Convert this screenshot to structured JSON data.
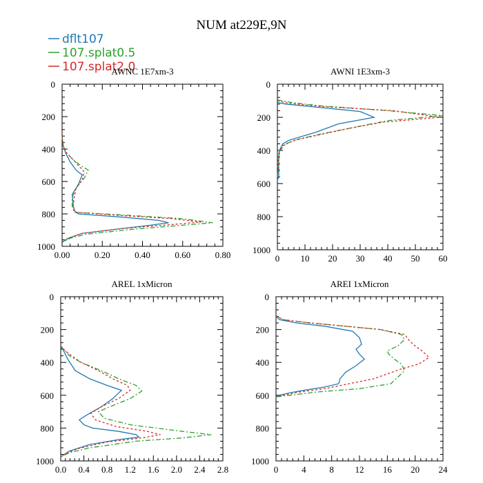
{
  "title": "NUM at229E,9N",
  "legend": {
    "placement": "top-left",
    "entries": [
      {
        "name": "dflt107",
        "color": "#1f77b4",
        "dash": "solid"
      },
      {
        "name": "107.splat0.5",
        "color": "#2ca02c",
        "dash": "dashdot"
      },
      {
        "name": "107.splat2.0",
        "color": "#d62728",
        "dash": "dotted"
      }
    ]
  },
  "chart_data": [
    {
      "type": "line",
      "title": "AWNC 1E7xm-3",
      "xlabel": "",
      "ylabel": "",
      "xlim": [
        0,
        0.8
      ],
      "ylim": [
        1000,
        0
      ],
      "xticks": [
        0,
        0.2,
        0.4,
        0.6,
        0.8
      ],
      "xtick_labels": [
        "0.00",
        "0.20",
        "0.40",
        "0.60",
        "0.80"
      ],
      "yticks": [
        0,
        200,
        400,
        600,
        800,
        1000
      ],
      "ytick_labels": [
        "0",
        "200",
        "400",
        "600",
        "800",
        "1000"
      ],
      "series": [
        {
          "name": "dflt107",
          "points": [
            [
              0,
              320
            ],
            [
              0.005,
              380
            ],
            [
              0.02,
              430
            ],
            [
              0.04,
              480
            ],
            [
              0.07,
              530
            ],
            [
              0.1,
              560
            ],
            [
              0.08,
              620
            ],
            [
              0.05,
              680
            ],
            [
              0.055,
              740
            ],
            [
              0.06,
              780
            ],
            [
              0.08,
              800
            ],
            [
              0.3,
              820
            ],
            [
              0.48,
              840
            ],
            [
              0.53,
              855
            ],
            [
              0.44,
              870
            ],
            [
              0.3,
              890
            ],
            [
              0.1,
              920
            ],
            [
              0.03,
              950
            ],
            [
              0,
              975
            ]
          ]
        },
        {
          "name": "107.splat0.5",
          "points": [
            [
              0,
              320
            ],
            [
              0.005,
              380
            ],
            [
              0.02,
              420
            ],
            [
              0.05,
              460
            ],
            [
              0.09,
              500
            ],
            [
              0.13,
              530
            ],
            [
              0.11,
              580
            ],
            [
              0.07,
              640
            ],
            [
              0.05,
              700
            ],
            [
              0.05,
              750
            ],
            [
              0.06,
              790
            ],
            [
              0.35,
              810
            ],
            [
              0.6,
              830
            ],
            [
              0.75,
              855
            ],
            [
              0.6,
              870
            ],
            [
              0.35,
              895
            ],
            [
              0.12,
              925
            ],
            [
              0.04,
              950
            ],
            [
              0,
              975
            ]
          ]
        },
        {
          "name": "107.splat2.0",
          "points": [
            [
              0,
              320
            ],
            [
              0.005,
              380
            ],
            [
              0.02,
              420
            ],
            [
              0.05,
              460
            ],
            [
              0.08,
              500
            ],
            [
              0.11,
              540
            ],
            [
              0.1,
              590
            ],
            [
              0.07,
              640
            ],
            [
              0.06,
              700
            ],
            [
              0.055,
              750
            ],
            [
              0.065,
              790
            ],
            [
              0.3,
              810
            ],
            [
              0.55,
              830
            ],
            [
              0.69,
              850
            ],
            [
              0.55,
              865
            ],
            [
              0.3,
              890
            ],
            [
              0.1,
              920
            ],
            [
              0.03,
              950
            ],
            [
              0,
              975
            ]
          ]
        }
      ]
    },
    {
      "type": "line",
      "title": "AWNI 1E3xm-3",
      "xlabel": "",
      "ylabel": "",
      "xlim": [
        0,
        60
      ],
      "ylim": [
        1000,
        0
      ],
      "xticks": [
        0,
        10,
        20,
        30,
        40,
        50,
        60
      ],
      "xtick_labels": [
        "0",
        "10",
        "20",
        "30",
        "40",
        "50",
        "60"
      ],
      "yticks": [
        0,
        200,
        400,
        600,
        800,
        1000
      ],
      "ytick_labels": [
        "0",
        "200",
        "400",
        "600",
        "800",
        "1000"
      ],
      "series": [
        {
          "name": "dflt107",
          "points": [
            [
              0,
              110
            ],
            [
              3,
              120
            ],
            [
              15,
              140
            ],
            [
              30,
              165
            ],
            [
              35,
              200
            ],
            [
              22,
              240
            ],
            [
              14,
              290
            ],
            [
              8,
              320
            ],
            [
              4,
              340
            ],
            [
              2,
              360
            ],
            [
              1,
              390
            ],
            [
              0.5,
              420
            ],
            [
              0.5,
              500
            ],
            [
              0.5,
              560
            ],
            [
              0,
              580
            ]
          ]
        },
        {
          "name": "107.splat0.5",
          "points": [
            [
              0,
              95
            ],
            [
              5,
              110
            ],
            [
              15,
              130
            ],
            [
              40,
              160
            ],
            [
              60,
              190
            ],
            [
              40,
              220
            ],
            [
              28,
              260
            ],
            [
              16,
              300
            ],
            [
              8,
              330
            ],
            [
              3,
              360
            ],
            [
              1,
              400
            ],
            [
              0.5,
              450
            ],
            [
              0.3,
              520
            ],
            [
              0,
              560
            ]
          ]
        },
        {
          "name": "107.splat2.0",
          "points": [
            [
              0,
              100
            ],
            [
              4,
              115
            ],
            [
              16,
              135
            ],
            [
              42,
              160
            ],
            [
              59,
              200
            ],
            [
              38,
              230
            ],
            [
              25,
              270
            ],
            [
              14,
              310
            ],
            [
              6,
              340
            ],
            [
              2,
              370
            ],
            [
              0.8,
              400
            ],
            [
              0.3,
              460
            ],
            [
              0.2,
              520
            ],
            [
              0,
              560
            ]
          ]
        }
      ]
    },
    {
      "type": "line",
      "title": "AREL 1xMicron",
      "xlabel": "",
      "ylabel": "",
      "xlim": [
        0,
        2.8
      ],
      "ylim": [
        1000,
        0
      ],
      "xticks": [
        0,
        0.4,
        0.8,
        1.2,
        1.6,
        2.0,
        2.4,
        2.8
      ],
      "xtick_labels": [
        "0.0",
        "0.4",
        "0.8",
        "1.2",
        "1.6",
        "2.0",
        "2.4",
        "2.8"
      ],
      "yticks": [
        0,
        200,
        400,
        600,
        800,
        1000
      ],
      "ytick_labels": [
        "0",
        "200",
        "400",
        "600",
        "800",
        "1000"
      ],
      "series": [
        {
          "name": "dflt107",
          "points": [
            [
              0,
              300
            ],
            [
              0.05,
              330
            ],
            [
              0.12,
              380
            ],
            [
              0.25,
              450
            ],
            [
              0.5,
              500
            ],
            [
              0.8,
              540
            ],
            [
              1.05,
              570
            ],
            [
              0.9,
              620
            ],
            [
              0.7,
              670
            ],
            [
              0.45,
              720
            ],
            [
              0.32,
              750
            ],
            [
              0.4,
              780
            ],
            [
              0.55,
              800
            ],
            [
              1,
              820
            ],
            [
              1.3,
              840
            ],
            [
              1.35,
              855
            ],
            [
              1,
              870
            ],
            [
              0.5,
              900
            ],
            [
              0.15,
              940
            ],
            [
              0,
              975
            ]
          ]
        },
        {
          "name": "107.splat0.5",
          "points": [
            [
              0,
              300
            ],
            [
              0.05,
              320
            ],
            [
              0.15,
              360
            ],
            [
              0.35,
              400
            ],
            [
              0.7,
              450
            ],
            [
              1,
              500
            ],
            [
              1.3,
              540
            ],
            [
              1.4,
              575
            ],
            [
              1.2,
              620
            ],
            [
              0.85,
              670
            ],
            [
              0.65,
              700
            ],
            [
              0.75,
              740
            ],
            [
              1.2,
              780
            ],
            [
              2.1,
              820
            ],
            [
              2.6,
              840
            ],
            [
              2.1,
              860
            ],
            [
              1.3,
              880
            ],
            [
              0.5,
              920
            ],
            [
              0.15,
              950
            ],
            [
              0,
              975
            ]
          ]
        },
        {
          "name": "107.splat2.0",
          "points": [
            [
              0,
              300
            ],
            [
              0.05,
              320
            ],
            [
              0.15,
              350
            ],
            [
              0.35,
              400
            ],
            [
              0.65,
              450
            ],
            [
              0.9,
              500
            ],
            [
              1.15,
              540
            ],
            [
              1.2,
              570
            ],
            [
              1,
              620
            ],
            [
              0.7,
              670
            ],
            [
              0.52,
              710
            ],
            [
              0.6,
              750
            ],
            [
              0.95,
              790
            ],
            [
              1.5,
              820
            ],
            [
              1.72,
              840
            ],
            [
              1.4,
              860
            ],
            [
              0.8,
              885
            ],
            [
              0.3,
              925
            ],
            [
              0.08,
              955
            ],
            [
              0,
              975
            ]
          ]
        }
      ]
    },
    {
      "type": "line",
      "title": "AREI 1xMicron",
      "xlabel": "",
      "ylabel": "",
      "xlim": [
        0,
        24
      ],
      "ylim": [
        1000,
        0
      ],
      "xticks": [
        0,
        4,
        8,
        12,
        16,
        20,
        24
      ],
      "xtick_labels": [
        "0",
        "4",
        "8",
        "12",
        "16",
        "20",
        "24"
      ],
      "yticks": [
        0,
        200,
        400,
        600,
        800,
        1000
      ],
      "ytick_labels": [
        "0",
        "200",
        "400",
        "600",
        "800",
        "1000"
      ],
      "series": [
        {
          "name": "dflt107",
          "points": [
            [
              0,
              120
            ],
            [
              0.5,
              140
            ],
            [
              3,
              160
            ],
            [
              7,
              180
            ],
            [
              11,
              210
            ],
            [
              12,
              250
            ],
            [
              12.3,
              290
            ],
            [
              11.5,
              320
            ],
            [
              12,
              350
            ],
            [
              12.7,
              380
            ],
            [
              11.5,
              420
            ],
            [
              10,
              460
            ],
            [
              9.2,
              500
            ],
            [
              9,
              530
            ],
            [
              7,
              550
            ],
            [
              4,
              570
            ],
            [
              2,
              585
            ],
            [
              0.5,
              600
            ],
            [
              0,
              610
            ]
          ]
        },
        {
          "name": "107.splat0.5",
          "points": [
            [
              0,
              115
            ],
            [
              1,
              140
            ],
            [
              5,
              160
            ],
            [
              10,
              180
            ],
            [
              15,
              200
            ],
            [
              18,
              230
            ],
            [
              18.5,
              260
            ],
            [
              17.5,
              300
            ],
            [
              16,
              330
            ],
            [
              16.2,
              350
            ],
            [
              17,
              380
            ],
            [
              18,
              410
            ],
            [
              18.5,
              450
            ],
            [
              17.5,
              490
            ],
            [
              16.5,
              530
            ],
            [
              12,
              560
            ],
            [
              6,
              580
            ],
            [
              2,
              600
            ],
            [
              0,
              610
            ]
          ]
        },
        {
          "name": "107.splat2.0",
          "points": [
            [
              0,
              115
            ],
            [
              1,
              140
            ],
            [
              5,
              160
            ],
            [
              10,
              180
            ],
            [
              15,
              200
            ],
            [
              18.5,
              230
            ],
            [
              19.2,
              270
            ],
            [
              20,
              300
            ],
            [
              21,
              330
            ],
            [
              22,
              370
            ],
            [
              20.5,
              410
            ],
            [
              18,
              440
            ],
            [
              16,
              470
            ],
            [
              14,
              500
            ],
            [
              10.5,
              530
            ],
            [
              7,
              560
            ],
            [
              3.5,
              580
            ],
            [
              1,
              600
            ],
            [
              0,
              610
            ]
          ]
        }
      ]
    }
  ]
}
